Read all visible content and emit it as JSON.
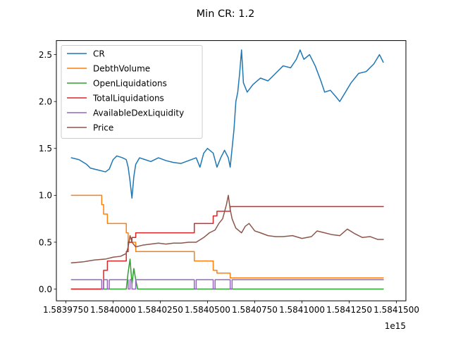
{
  "chart_data": {
    "type": "line",
    "title": "Min CR: 1.2",
    "xlabel": "",
    "ylabel": "",
    "x_offset_label": "1e15",
    "xlim": [
      1.58397,
      1.584155
    ],
    "ylim": [
      -0.125,
      2.65
    ],
    "x_ticks": [
      1.583975,
      1.584,
      1.584025,
      1.58405,
      1.584075,
      1.5841,
      1.584125,
      1.58415
    ],
    "x_tick_labels": [
      "1.5839750",
      "1.5840000",
      "1.5840250",
      "1.5840500",
      "1.5840750",
      "1.5841000",
      "1.5841250",
      "1.5841500"
    ],
    "y_ticks": [
      0.0,
      0.5,
      1.0,
      1.5,
      2.0,
      2.5
    ],
    "y_tick_labels": [
      "0.0",
      "0.5",
      "1.0",
      "1.5",
      "2.0",
      "2.5"
    ],
    "grid": false,
    "legend_position": "top-left",
    "series": [
      {
        "name": "CR",
        "color": "#1f77b4",
        "points": [
          [
            1.583978,
            1.4
          ],
          [
            1.583982,
            1.38
          ],
          [
            1.583986,
            1.33
          ],
          [
            1.583988,
            1.29
          ],
          [
            1.583992,
            1.27
          ],
          [
            1.583996,
            1.25
          ],
          [
            1.583998,
            1.28
          ],
          [
            1.584,
            1.38
          ],
          [
            1.584002,
            1.42
          ],
          [
            1.584005,
            1.4
          ],
          [
            1.584007,
            1.38
          ],
          [
            1.584008,
            1.3
          ],
          [
            1.584009,
            1.15
          ],
          [
            1.58401,
            0.97
          ],
          [
            1.584011,
            1.2
          ],
          [
            1.584012,
            1.33
          ],
          [
            1.584014,
            1.4
          ],
          [
            1.584017,
            1.38
          ],
          [
            1.58402,
            1.36
          ],
          [
            1.584024,
            1.4
          ],
          [
            1.584028,
            1.37
          ],
          [
            1.584032,
            1.35
          ],
          [
            1.584036,
            1.34
          ],
          [
            1.58404,
            1.37
          ],
          [
            1.584044,
            1.4
          ],
          [
            1.584046,
            1.3
          ],
          [
            1.584048,
            1.45
          ],
          [
            1.58405,
            1.5
          ],
          [
            1.584053,
            1.45
          ],
          [
            1.584055,
            1.3
          ],
          [
            1.584057,
            1.4
          ],
          [
            1.584059,
            1.48
          ],
          [
            1.584061,
            1.4
          ],
          [
            1.584062,
            1.3
          ],
          [
            1.584063,
            1.5
          ],
          [
            1.584064,
            1.7
          ],
          [
            1.584065,
            2.0
          ],
          [
            1.584066,
            2.1
          ],
          [
            1.584067,
            2.3
          ],
          [
            1.584068,
            2.55
          ],
          [
            1.584069,
            2.2
          ],
          [
            1.584071,
            2.1
          ],
          [
            1.584074,
            2.18
          ],
          [
            1.584078,
            2.25
          ],
          [
            1.584082,
            2.22
          ],
          [
            1.584086,
            2.3
          ],
          [
            1.58409,
            2.38
          ],
          [
            1.584094,
            2.36
          ],
          [
            1.584097,
            2.45
          ],
          [
            1.584099,
            2.55
          ],
          [
            1.584101,
            2.45
          ],
          [
            1.584104,
            2.5
          ],
          [
            1.584107,
            2.38
          ],
          [
            1.58411,
            2.22
          ],
          [
            1.584112,
            2.1
          ],
          [
            1.584115,
            2.12
          ],
          [
            1.584118,
            2.05
          ],
          [
            1.58412,
            2.0
          ],
          [
            1.584123,
            2.1
          ],
          [
            1.584126,
            2.2
          ],
          [
            1.58413,
            2.3
          ],
          [
            1.584134,
            2.32
          ],
          [
            1.584138,
            2.4
          ],
          [
            1.584141,
            2.5
          ],
          [
            1.584143,
            2.42
          ]
        ]
      },
      {
        "name": "DebthVolume",
        "color": "#ff7f0e",
        "points": [
          [
            1.583978,
            1.0
          ],
          [
            1.583994,
            1.0
          ],
          [
            1.583994,
            0.9
          ],
          [
            1.583995,
            0.9
          ],
          [
            1.583995,
            0.8
          ],
          [
            1.583997,
            0.8
          ],
          [
            1.583997,
            0.7
          ],
          [
            1.584007,
            0.7
          ],
          [
            1.584007,
            0.6
          ],
          [
            1.584008,
            0.6
          ],
          [
            1.584008,
            0.5
          ],
          [
            1.584012,
            0.5
          ],
          [
            1.584012,
            0.4
          ],
          [
            1.584043,
            0.4
          ],
          [
            1.584043,
            0.3
          ],
          [
            1.584053,
            0.3
          ],
          [
            1.584053,
            0.2
          ],
          [
            1.584055,
            0.2
          ],
          [
            1.584055,
            0.17
          ],
          [
            1.584062,
            0.17
          ],
          [
            1.584062,
            0.12
          ],
          [
            1.584143,
            0.12
          ]
        ]
      },
      {
        "name": "OpenLiquidations",
        "color": "#2ca02c",
        "points": [
          [
            1.583978,
            0.0
          ],
          [
            1.584007,
            0.0
          ],
          [
            1.584008,
            0.18
          ],
          [
            1.584009,
            0.32
          ],
          [
            1.58401,
            0.05
          ],
          [
            1.584011,
            0.22
          ],
          [
            1.584012,
            0.1
          ],
          [
            1.584013,
            0.0
          ],
          [
            1.584143,
            0.0
          ]
        ]
      },
      {
        "name": "TotalLiquidations",
        "color": "#d62728",
        "points": [
          [
            1.583978,
            0.0
          ],
          [
            1.583995,
            0.0
          ],
          [
            1.583995,
            0.2
          ],
          [
            1.583997,
            0.2
          ],
          [
            1.583997,
            0.3
          ],
          [
            1.584007,
            0.3
          ],
          [
            1.584007,
            0.4
          ],
          [
            1.584008,
            0.4
          ],
          [
            1.584008,
            0.5
          ],
          [
            1.58401,
            0.5
          ],
          [
            1.58401,
            0.55
          ],
          [
            1.584012,
            0.55
          ],
          [
            1.584012,
            0.6
          ],
          [
            1.584043,
            0.6
          ],
          [
            1.584043,
            0.7
          ],
          [
            1.584053,
            0.7
          ],
          [
            1.584053,
            0.78
          ],
          [
            1.584055,
            0.78
          ],
          [
            1.584055,
            0.83
          ],
          [
            1.584062,
            0.83
          ],
          [
            1.584062,
            0.88
          ],
          [
            1.584143,
            0.88
          ]
        ]
      },
      {
        "name": "AvailableDexLiquidity",
        "color": "#9467bd",
        "points": [
          [
            1.583978,
            0.1
          ],
          [
            1.583994,
            0.1
          ],
          [
            1.583994,
            0.0
          ],
          [
            1.583995,
            0.0
          ],
          [
            1.583995,
            0.1
          ],
          [
            1.583997,
            0.1
          ],
          [
            1.583997,
            0.0
          ],
          [
            1.583998,
            0.0
          ],
          [
            1.583998,
            0.1
          ],
          [
            1.584008,
            0.1
          ],
          [
            1.584008,
            0.0
          ],
          [
            1.584009,
            0.0
          ],
          [
            1.584009,
            0.1
          ],
          [
            1.58401,
            0.1
          ],
          [
            1.58401,
            0.0
          ],
          [
            1.584012,
            0.0
          ],
          [
            1.584012,
            0.1
          ],
          [
            1.584043,
            0.1
          ],
          [
            1.584043,
            0.0
          ],
          [
            1.584044,
            0.0
          ],
          [
            1.584044,
            0.1
          ],
          [
            1.584053,
            0.1
          ],
          [
            1.584053,
            0.0
          ],
          [
            1.584054,
            0.0
          ],
          [
            1.584054,
            0.1
          ],
          [
            1.584062,
            0.1
          ],
          [
            1.584062,
            0.0
          ],
          [
            1.584063,
            0.0
          ],
          [
            1.584063,
            0.1
          ],
          [
            1.584143,
            0.1
          ]
        ]
      },
      {
        "name": "Price",
        "color": "#8c564b",
        "points": [
          [
            1.583978,
            0.28
          ],
          [
            1.583984,
            0.29
          ],
          [
            1.58399,
            0.31
          ],
          [
            1.583996,
            0.32
          ],
          [
            1.584,
            0.34
          ],
          [
            1.584004,
            0.35
          ],
          [
            1.584007,
            0.38
          ],
          [
            1.584008,
            0.45
          ],
          [
            1.584009,
            0.57
          ],
          [
            1.58401,
            0.5
          ],
          [
            1.584012,
            0.45
          ],
          [
            1.584016,
            0.47
          ],
          [
            1.58402,
            0.48
          ],
          [
            1.584024,
            0.49
          ],
          [
            1.584028,
            0.48
          ],
          [
            1.584032,
            0.49
          ],
          [
            1.584036,
            0.49
          ],
          [
            1.58404,
            0.5
          ],
          [
            1.584044,
            0.5
          ],
          [
            1.584048,
            0.55
          ],
          [
            1.584051,
            0.6
          ],
          [
            1.584054,
            0.63
          ],
          [
            1.584056,
            0.7
          ],
          [
            1.584058,
            0.75
          ],
          [
            1.58406,
            0.9
          ],
          [
            1.584061,
            1.0
          ],
          [
            1.584062,
            0.85
          ],
          [
            1.584063,
            0.75
          ],
          [
            1.584065,
            0.65
          ],
          [
            1.584068,
            0.6
          ],
          [
            1.58407,
            0.67
          ],
          [
            1.584072,
            0.7
          ],
          [
            1.584075,
            0.62
          ],
          [
            1.584078,
            0.6
          ],
          [
            1.584082,
            0.57
          ],
          [
            1.584086,
            0.56
          ],
          [
            1.58409,
            0.56
          ],
          [
            1.584095,
            0.57
          ],
          [
            1.5841,
            0.54
          ],
          [
            1.584105,
            0.56
          ],
          [
            1.584108,
            0.62
          ],
          [
            1.584112,
            0.6
          ],
          [
            1.584116,
            0.58
          ],
          [
            1.58412,
            0.57
          ],
          [
            1.584124,
            0.64
          ],
          [
            1.584128,
            0.59
          ],
          [
            1.584132,
            0.55
          ],
          [
            1.584136,
            0.56
          ],
          [
            1.58414,
            0.53
          ],
          [
            1.584143,
            0.53
          ]
        ]
      }
    ]
  }
}
